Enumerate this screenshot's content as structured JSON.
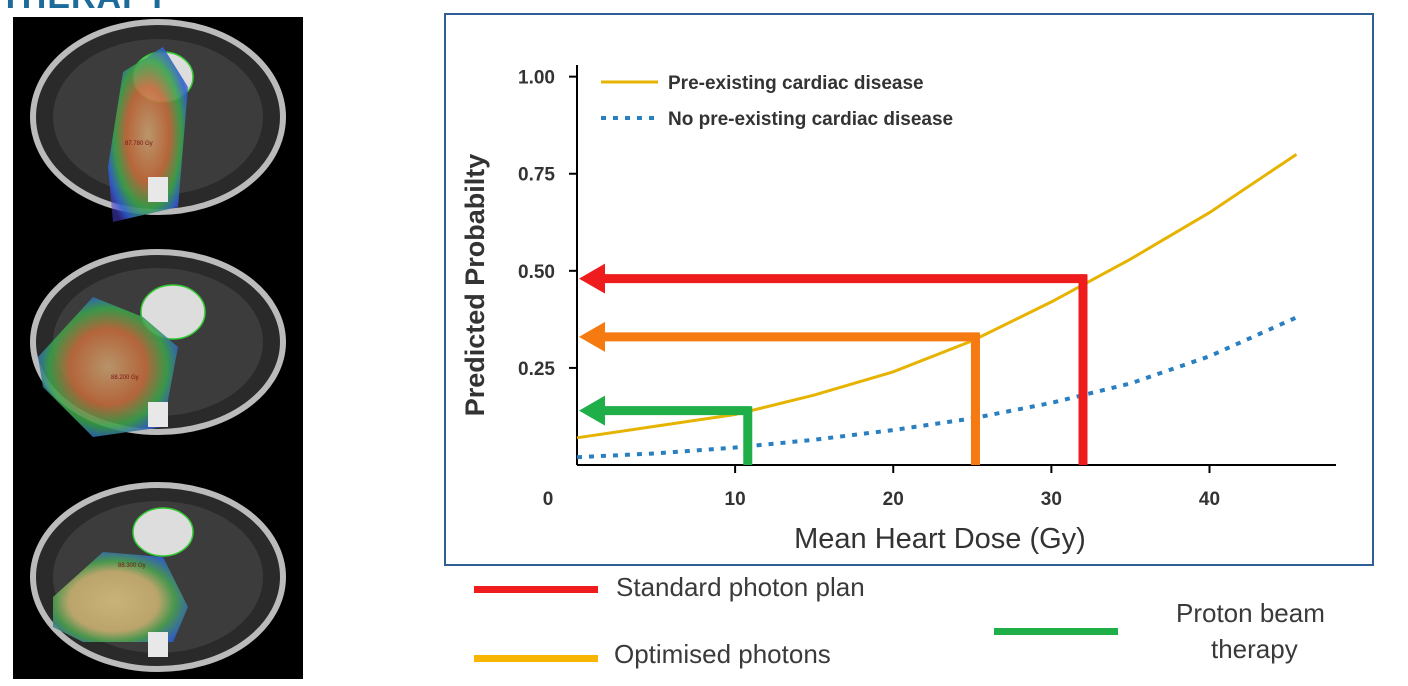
{
  "header": {
    "title_fragment": "THERAPY"
  },
  "ct_panels": {
    "labels": [
      "87.780 Gy",
      "88.200 Gy",
      "88.300 Gy"
    ]
  },
  "chart_data": {
    "type": "line",
    "ylabel": "Predicted Probabilty",
    "xlabel": "Mean Heart Dose (Gy)",
    "x_ticks": [
      0,
      10,
      20,
      30,
      40
    ],
    "y_ticks": [
      "1.00",
      "0.75",
      "0.50",
      "0.25"
    ],
    "y_tick_values": [
      1.0,
      0.75,
      0.5,
      0.25
    ],
    "xlim": [
      0,
      48
    ],
    "ylim": [
      0,
      1.03
    ],
    "legend": [
      {
        "name": "Pre-existing cardiac disease",
        "style": "solid",
        "color": "#e6b400"
      },
      {
        "name": "No pre-existing cardiac disease",
        "style": "dotted",
        "color": "#2a7fc1"
      }
    ],
    "series": [
      {
        "name": "Pre-existing cardiac disease",
        "x": [
          0,
          5,
          10,
          15,
          20,
          25,
          30,
          35,
          40,
          45.5
        ],
        "y": [
          0.07,
          0.1,
          0.13,
          0.18,
          0.24,
          0.32,
          0.42,
          0.53,
          0.65,
          0.8
        ]
      },
      {
        "name": "No pre-existing cardiac disease",
        "x": [
          0,
          5,
          10,
          15,
          20,
          25,
          30,
          35,
          40,
          45.5
        ],
        "y": [
          0.02,
          0.03,
          0.045,
          0.065,
          0.09,
          0.12,
          0.16,
          0.21,
          0.28,
          0.38
        ]
      }
    ],
    "annotations": [
      {
        "name": "standard-photon",
        "dose": 32,
        "probability": 0.48,
        "color": "#ee1c1c"
      },
      {
        "name": "optimised-photon",
        "dose": 25.2,
        "probability": 0.33,
        "color": "#f57a12"
      },
      {
        "name": "proton-beam",
        "dose": 10.8,
        "probability": 0.14,
        "color": "#1fae48"
      }
    ]
  },
  "bottom_legend": {
    "items": [
      {
        "label": "Standard photon plan",
        "color": "#ee1c1c"
      },
      {
        "label": "Optimised photons",
        "color": "#f7b500"
      },
      {
        "label": "Proton beam",
        "label2": "therapy",
        "color": "#1fae48"
      }
    ]
  }
}
